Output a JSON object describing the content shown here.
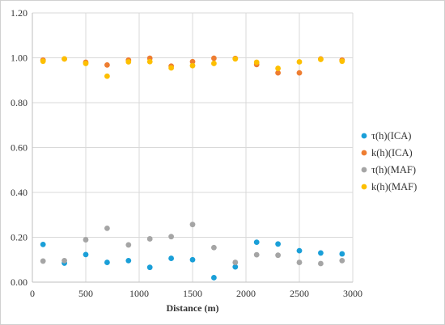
{
  "chart_data": {
    "type": "scatter",
    "title": "",
    "xlabel": "Distance (m)",
    "ylabel": "",
    "xlim": [
      0,
      3000
    ],
    "ylim": [
      0,
      1.2
    ],
    "x_ticks": [
      "0",
      "500",
      "1000",
      "1500",
      "2000",
      "2500",
      "3000"
    ],
    "y_ticks": [
      "0.00",
      "0.20",
      "0.40",
      "0.60",
      "0.80",
      "1.00",
      "1.20"
    ],
    "grid": "vertical and horizontal gridlines",
    "legend_position": "right",
    "x": [
      100,
      300,
      500,
      700,
      900,
      1100,
      1300,
      1500,
      1700,
      1900,
      2100,
      2300,
      2500,
      2700,
      2900
    ],
    "series": [
      {
        "name": "τ(h)(ICA)",
        "color": "#1a9fd8",
        "values": [
          0.168,
          0.085,
          0.123,
          0.088,
          0.096,
          0.066,
          0.106,
          0.1,
          0.02,
          0.068,
          0.178,
          0.17,
          0.14,
          0.13,
          0.126
        ]
      },
      {
        "name": "k(h)(ICA)",
        "color": "#ee7d31",
        "values": [
          0.99,
          0.995,
          0.98,
          0.968,
          0.99,
          0.998,
          0.963,
          0.983,
          0.998,
          0.997,
          0.97,
          0.933,
          0.933,
          0.995,
          0.99
        ]
      },
      {
        "name": "τ(h)(MAF)",
        "color": "#a5a5a5",
        "values": [
          0.094,
          0.096,
          0.189,
          0.24,
          0.166,
          0.193,
          0.203,
          0.257,
          0.154,
          0.088,
          0.122,
          0.12,
          0.088,
          0.083,
          0.096
        ]
      },
      {
        "name": "k(h)(MAF)",
        "color": "#fdbf00",
        "values": [
          0.985,
          0.995,
          0.975,
          0.918,
          0.982,
          0.983,
          0.955,
          0.965,
          0.975,
          0.995,
          0.98,
          0.953,
          0.982,
          0.993,
          0.985
        ]
      }
    ]
  }
}
